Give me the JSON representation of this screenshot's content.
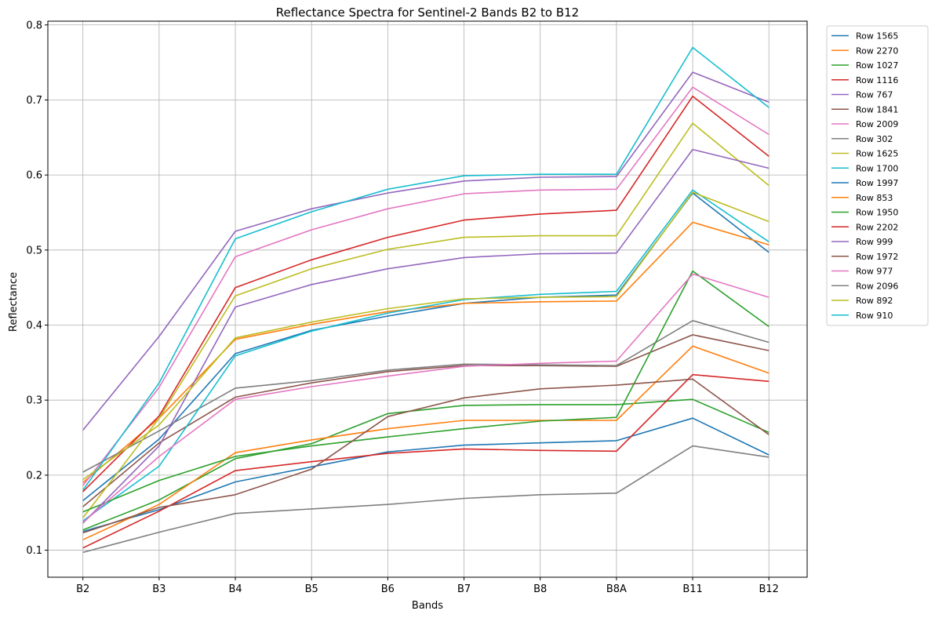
{
  "chart_data": {
    "type": "line",
    "title": "Reflectance Spectra for Sentinel-2 Bands B2 to B12",
    "xlabel": "Bands",
    "ylabel": "Reflectance",
    "categories": [
      "B2",
      "B3",
      "B4",
      "B5",
      "B6",
      "B7",
      "B8",
      "B8A",
      "B11",
      "B12"
    ],
    "ylim": [
      0.064,
      0.805
    ],
    "yticks": [
      0.1,
      0.2,
      0.3,
      0.4,
      0.5,
      0.6,
      0.7,
      0.8
    ],
    "ytick_labels": [
      "0.1",
      "0.2",
      "0.3",
      "0.4",
      "0.5",
      "0.6",
      "0.7",
      "0.8"
    ],
    "grid": true,
    "legend_position": "outside-right",
    "series": [
      {
        "name": "Row 1565",
        "color": "#1f77b4",
        "values": [
          0.166,
          0.248,
          0.362,
          0.393,
          0.412,
          0.429,
          0.437,
          0.44,
          0.576,
          0.497
        ]
      },
      {
        "name": "Row 2270",
        "color": "#ff7f0e",
        "values": [
          0.19,
          0.276,
          0.381,
          0.401,
          0.418,
          0.429,
          0.431,
          0.432,
          0.537,
          0.507
        ]
      },
      {
        "name": "Row 1027",
        "color": "#2ca02c",
        "values": [
          0.127,
          0.167,
          0.222,
          0.242,
          0.282,
          0.293,
          0.294,
          0.294,
          0.301,
          0.257
        ]
      },
      {
        "name": "Row 1116",
        "color": "#d62728",
        "values": [
          0.178,
          0.279,
          0.45,
          0.487,
          0.517,
          0.54,
          0.548,
          0.553,
          0.705,
          0.625
        ]
      },
      {
        "name": "Row 767",
        "color": "#9467bd",
        "values": [
          0.26,
          0.385,
          0.525,
          0.555,
          0.576,
          0.592,
          0.597,
          0.598,
          0.737,
          0.697
        ]
      },
      {
        "name": "Row 1841",
        "color": "#8c564b",
        "values": [
          0.158,
          0.243,
          0.304,
          0.323,
          0.338,
          0.346,
          0.346,
          0.345,
          0.387,
          0.366
        ]
      },
      {
        "name": "Row 2009",
        "color": "#e377c2",
        "values": [
          0.186,
          0.317,
          0.491,
          0.527,
          0.555,
          0.575,
          0.58,
          0.581,
          0.717,
          0.654
        ]
      },
      {
        "name": "Row 302",
        "color": "#7f7f7f",
        "values": [
          0.204,
          0.259,
          0.316,
          0.326,
          0.34,
          0.348,
          0.347,
          0.346,
          0.406,
          0.377
        ]
      },
      {
        "name": "Row 1625",
        "color": "#bcbd22",
        "values": [
          0.143,
          0.276,
          0.439,
          0.475,
          0.501,
          0.517,
          0.519,
          0.519,
          0.669,
          0.586
        ]
      },
      {
        "name": "Row 1700",
        "color": "#17becf",
        "values": [
          0.139,
          0.212,
          0.359,
          0.392,
          0.416,
          0.434,
          0.441,
          0.445,
          0.58,
          0.511
        ]
      },
      {
        "name": "Row 1997",
        "color": "#1f77b4",
        "values": [
          0.125,
          0.154,
          0.191,
          0.211,
          0.231,
          0.24,
          0.243,
          0.246,
          0.276,
          0.227
        ]
      },
      {
        "name": "Row 853",
        "color": "#ff7f0e",
        "values": [
          0.114,
          0.161,
          0.23,
          0.247,
          0.262,
          0.273,
          0.273,
          0.273,
          0.372,
          0.336
        ]
      },
      {
        "name": "Row 1950",
        "color": "#2ca02c",
        "values": [
          0.151,
          0.193,
          0.225,
          0.239,
          0.251,
          0.262,
          0.272,
          0.277,
          0.472,
          0.398
        ]
      },
      {
        "name": "Row 2202",
        "color": "#d62728",
        "values": [
          0.103,
          0.152,
          0.206,
          0.218,
          0.229,
          0.235,
          0.233,
          0.232,
          0.334,
          0.325
        ]
      },
      {
        "name": "Row 999",
        "color": "#9467bd",
        "values": [
          0.136,
          0.239,
          0.424,
          0.454,
          0.475,
          0.49,
          0.495,
          0.496,
          0.634,
          0.609
        ]
      },
      {
        "name": "Row 1972",
        "color": "#8c564b",
        "values": [
          0.123,
          0.157,
          0.174,
          0.208,
          0.278,
          0.303,
          0.315,
          0.32,
          0.328,
          0.254
        ]
      },
      {
        "name": "Row 977",
        "color": "#e377c2",
        "values": [
          0.137,
          0.225,
          0.301,
          0.318,
          0.332,
          0.345,
          0.349,
          0.352,
          0.468,
          0.437
        ]
      },
      {
        "name": "Row 2096",
        "color": "#7f7f7f",
        "values": [
          0.097,
          0.124,
          0.149,
          0.155,
          0.161,
          0.169,
          0.174,
          0.176,
          0.239,
          0.224
        ]
      },
      {
        "name": "Row 892",
        "color": "#bcbd22",
        "values": [
          0.194,
          0.267,
          0.383,
          0.404,
          0.422,
          0.435,
          0.437,
          0.438,
          0.577,
          0.538
        ]
      },
      {
        "name": "Row 910",
        "color": "#17becf",
        "values": [
          0.18,
          0.323,
          0.515,
          0.551,
          0.581,
          0.599,
          0.601,
          0.601,
          0.77,
          0.69
        ]
      }
    ]
  }
}
